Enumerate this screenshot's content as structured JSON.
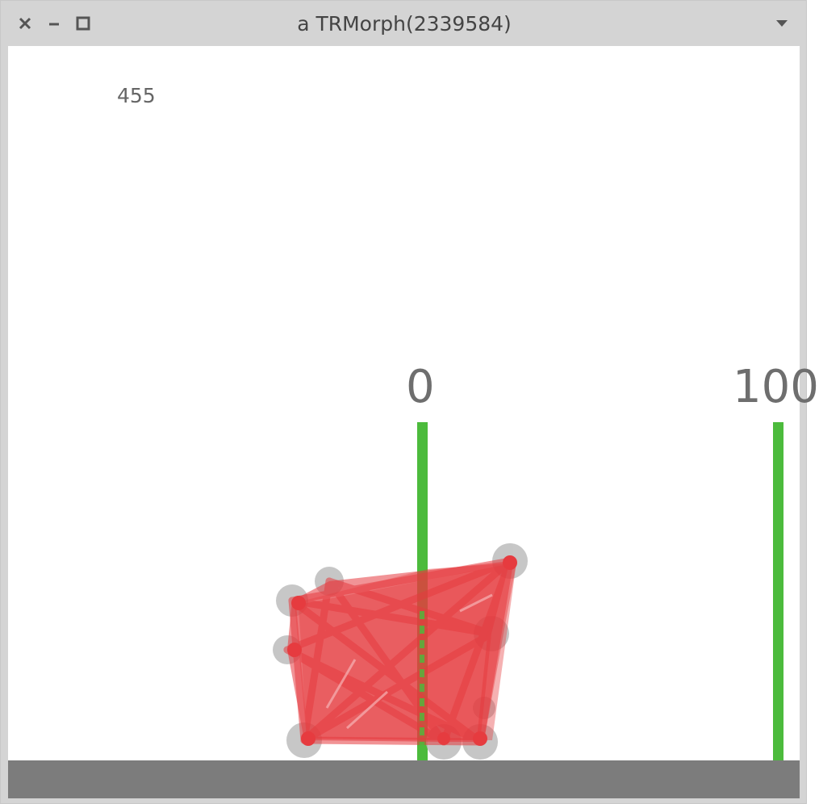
{
  "window": {
    "title": "a TRMorph(2339584)",
    "buttons": [
      "close-icon",
      "minimize-icon",
      "maximize-icon",
      "menu-arrow-icon"
    ]
  },
  "scene": {
    "counter": "455",
    "markers": [
      "0",
      "100"
    ],
    "colors": {
      "marker_line": "#4cbb3c",
      "creature_fill": "#e63b3f",
      "joint": "#bdbdbd",
      "ground": "#7c7c7c",
      "label": "#6e6e6e"
    }
  }
}
